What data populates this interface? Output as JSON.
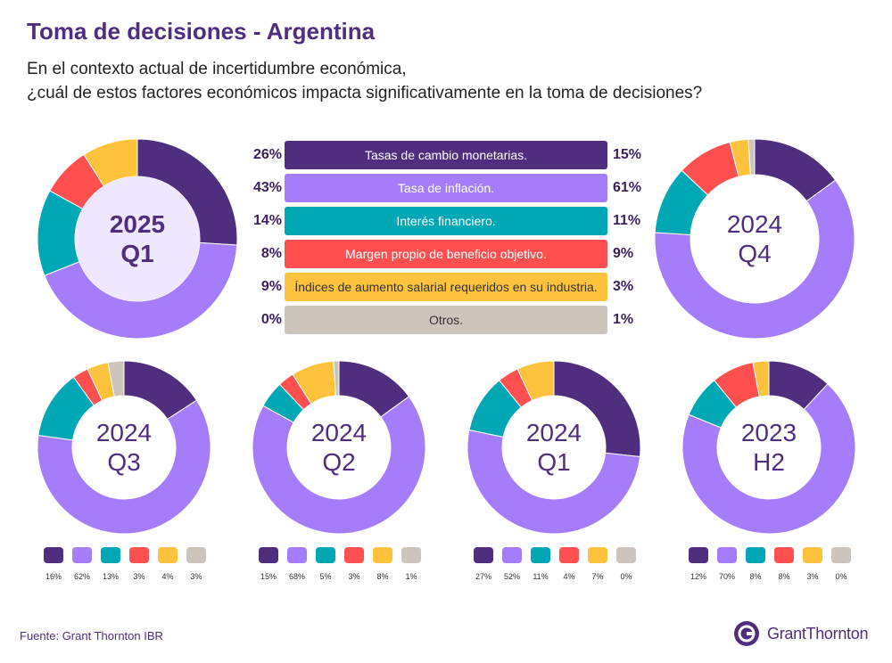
{
  "header": {
    "title": "Toma de decisiones - Argentina",
    "subtitle_line1": "En el contexto actual de incertidumbre económica,",
    "subtitle_line2": "¿cuál de estos factores económicos impacta significativamente en la toma de decisiones?"
  },
  "colors": [
    "#4f2d7f",
    "#a57dfa",
    "#00a7b5",
    "#ff4f4f",
    "#ffc23d",
    "#cdc4bc"
  ],
  "chart_data": {
    "type": "pie",
    "categories": [
      "Tasas de cambio monetarias.",
      "Tasa de inflación.",
      "Interés financiero.",
      "Margen propio de beneficio objetivo.",
      "Índices de aumento salarial requeridos en su industria.",
      "Otros."
    ],
    "series": [
      {
        "name": "2025 Q1",
        "line1": "2025",
        "line2": "Q1",
        "values": [
          26,
          43,
          14,
          8,
          9,
          0
        ],
        "labels": [
          "26%",
          "43%",
          "14%",
          "8%",
          "9%",
          "0%"
        ]
      },
      {
        "name": "2024 Q4",
        "line1": "2024",
        "line2": "Q4",
        "values": [
          15,
          61,
          11,
          9,
          3,
          1
        ],
        "labels": [
          "15%",
          "61%",
          "11%",
          "9%",
          "3%",
          "1%"
        ]
      },
      {
        "name": "2024 Q3",
        "line1": "2024",
        "line2": "Q3",
        "values": [
          16,
          62,
          13,
          3,
          4,
          3
        ],
        "labels": [
          "16%",
          "62%",
          "13%",
          "3%",
          "4%",
          "3%"
        ]
      },
      {
        "name": "2024 Q2",
        "line1": "2024",
        "line2": "Q2",
        "values": [
          15,
          68,
          5,
          3,
          8,
          1
        ],
        "labels": [
          "15%",
          "68%",
          "5%",
          "3%",
          "8%",
          "1%"
        ]
      },
      {
        "name": "2024 Q1",
        "line1": "2024",
        "line2": "Q1",
        "values": [
          27,
          52,
          11,
          4,
          7,
          0
        ],
        "labels": [
          "27%",
          "52%",
          "11%",
          "4%",
          "7%",
          "0%"
        ]
      },
      {
        "name": "2023 H2",
        "line1": "2023",
        "line2": "H2",
        "values": [
          12,
          70,
          8,
          8,
          3,
          0
        ],
        "labels": [
          "12%",
          "70%",
          "8%",
          "8%",
          "3%",
          "0%"
        ]
      }
    ]
  },
  "footer": {
    "source": "Fuente: Grant Thornton IBR",
    "logo_text": "GrantThornton"
  }
}
